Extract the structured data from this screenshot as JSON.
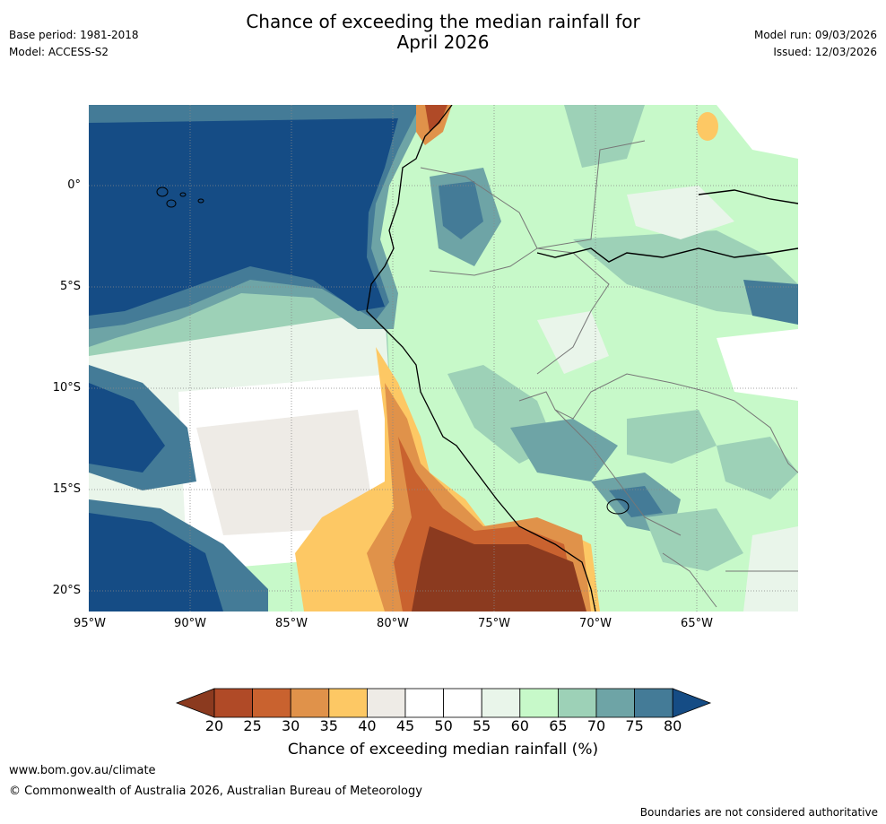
{
  "header": {
    "title_line1": "Chance of exceeding the median rainfall for",
    "title_line2": "April 2026",
    "base_period": "Base period: 1981-2018",
    "model": "Model: ACCESS-S2",
    "model_run": "Model run: 09/03/2026",
    "issued": "Issued: 12/03/2026"
  },
  "map": {
    "region": "Western South America (Ecuador, Peru, Bolivia, northern Chile, western Brazil) and eastern Pacific Ocean",
    "lat_labels": [
      "0°",
      "5°S",
      "10°S",
      "15°S",
      "20°S"
    ],
    "lon_labels": [
      "95°W",
      "90°W",
      "85°W",
      "80°W",
      "75°W",
      "70°W",
      "65°W"
    ]
  },
  "legend": {
    "ticks": [
      "20",
      "25",
      "30",
      "35",
      "40",
      "45",
      "50",
      "55",
      "60",
      "65",
      "70",
      "75",
      "80"
    ],
    "colors": [
      "#8b3a1f",
      "#b04a27",
      "#c9622f",
      "#e0924a",
      "#fdc864",
      "#eeebe6",
      "#ffffff",
      "#ffffff",
      "#e9f5ea",
      "#c7f9c9",
      "#9dd1b7",
      "#6ea4a6",
      "#447b97",
      "#154c85"
    ],
    "label": "Chance of exceeding median rainfall (%)"
  },
  "footer": {
    "url": "www.bom.gov.au/climate",
    "copyright": "© Commonwealth of Australia 2026, Australian Bureau of Meteorology",
    "disclaimer": "Boundaries are not considered authoritative"
  }
}
